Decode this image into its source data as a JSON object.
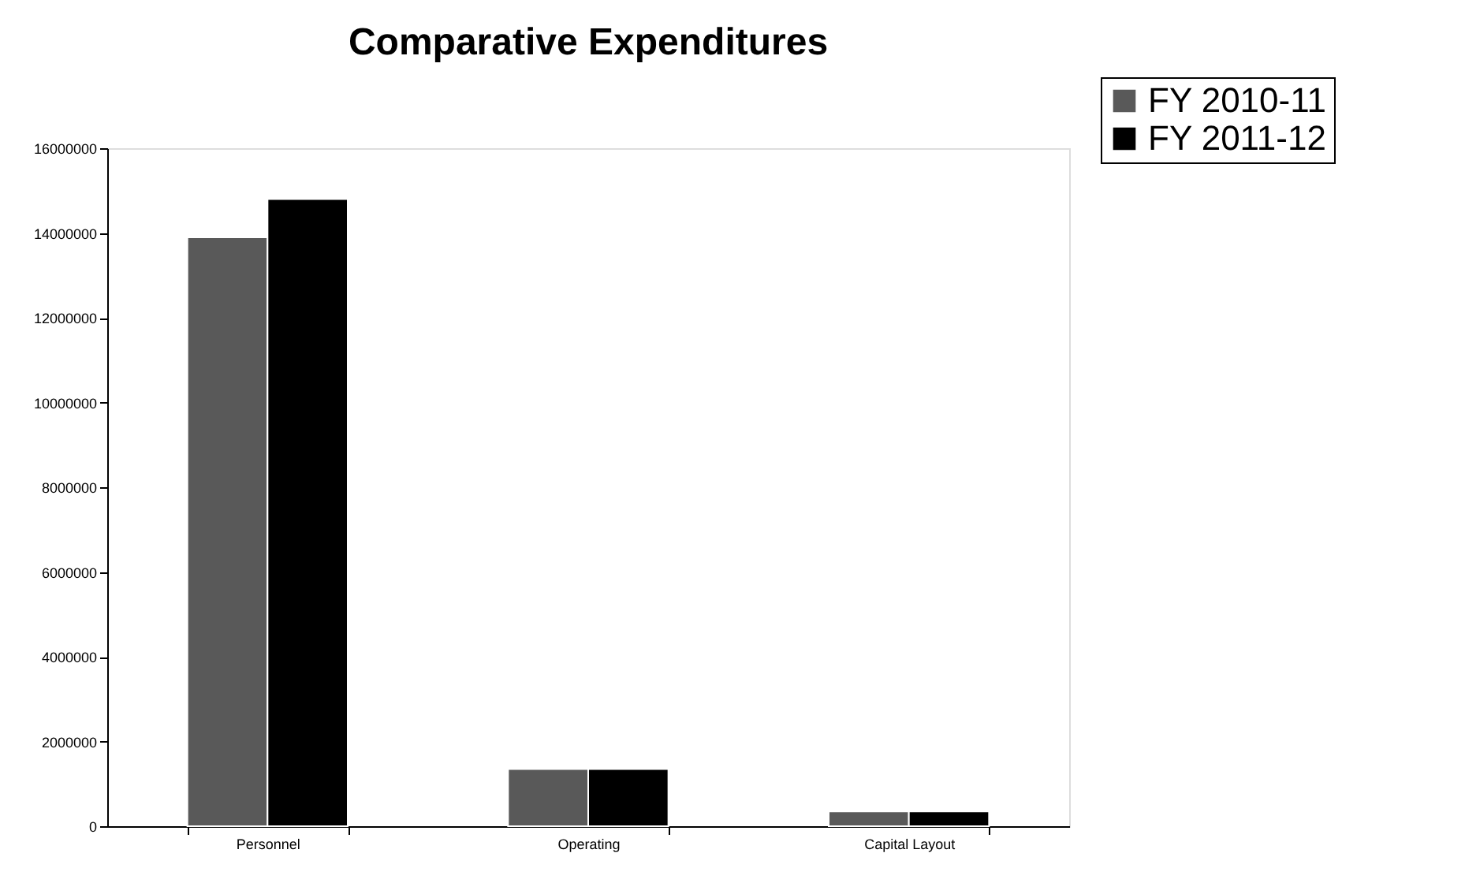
{
  "chart_data": {
    "type": "bar",
    "title": "Comparative Expenditures",
    "categories": [
      "Personnel",
      "Operating",
      "Capital Layout"
    ],
    "series": [
      {
        "name": "FY 2010-11",
        "color": "#595959",
        "values": [
          13900000,
          1350000,
          350000
        ]
      },
      {
        "name": "FY 2011-12",
        "color": "#000000",
        "values": [
          14800000,
          1350000,
          350000
        ]
      }
    ],
    "ylim": [
      0,
      16000000
    ],
    "yticks": [
      0,
      2000000,
      4000000,
      6000000,
      8000000,
      10000000,
      12000000,
      14000000,
      16000000
    ],
    "grid": false,
    "legend": "top right"
  }
}
